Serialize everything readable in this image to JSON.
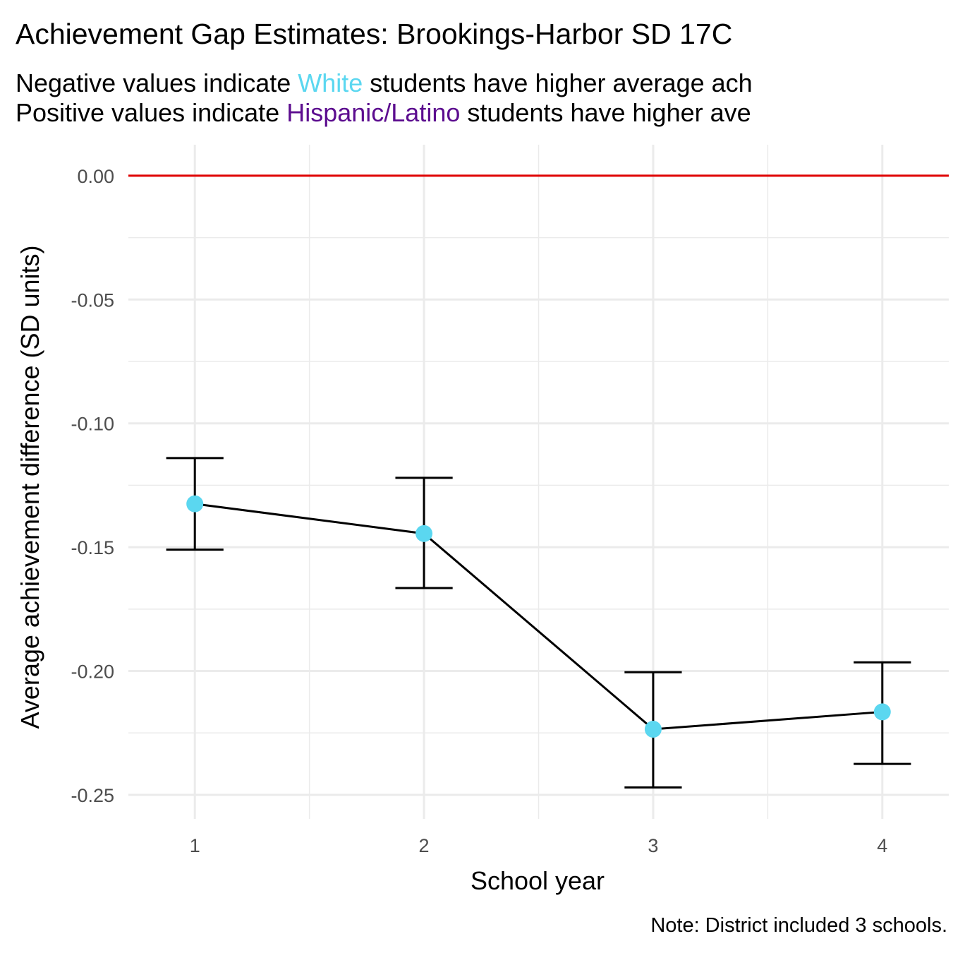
{
  "chart_data": {
    "type": "errorbar-line",
    "title": "Achievement Gap Estimates: Brookings-Harbor SD 17C",
    "subtitle_lines": [
      [
        {
          "text": "Negative values indicate ",
          "color": "#000000"
        },
        {
          "text": "White",
          "color": "#5bd7f0"
        },
        {
          "text": " students have higher average ach",
          "color": "#000000"
        }
      ],
      [
        {
          "text": "Positive values indicate ",
          "color": "#000000"
        },
        {
          "text": "Hispanic/Latino",
          "color": "#5c0d8f"
        },
        {
          "text": " students have higher ave",
          "color": "#000000"
        }
      ]
    ],
    "x_label": "School year",
    "y_label": "Average achievement difference (SD units)",
    "caption": "Note: District included 3 schools.",
    "x": [
      1,
      2,
      3,
      4
    ],
    "values": [
      -0.1325,
      -0.1445,
      -0.2235,
      -0.2165
    ],
    "upper": [
      -0.114,
      -0.122,
      -0.2005,
      -0.1965
    ],
    "lower": [
      -0.151,
      -0.1665,
      -0.247,
      -0.2375
    ],
    "line_color": "#000000",
    "point_color": "#5bd7f0",
    "reference_line": {
      "value": 0,
      "color": "#e00000"
    },
    "xlim": [
      0.71,
      4.29
    ],
    "ylim": [
      -0.2597,
      0.0125
    ],
    "xticks": [
      1,
      2,
      3,
      4
    ],
    "yticks": [
      {
        "value": 0,
        "label": "0.00"
      },
      {
        "value": -0.05,
        "label": "-0.05"
      },
      {
        "value": -0.1,
        "label": "-0.10"
      },
      {
        "value": -0.15,
        "label": "-0.15"
      },
      {
        "value": -0.2,
        "label": "-0.20"
      },
      {
        "value": -0.25,
        "label": "-0.25"
      }
    ],
    "grid": true
  }
}
